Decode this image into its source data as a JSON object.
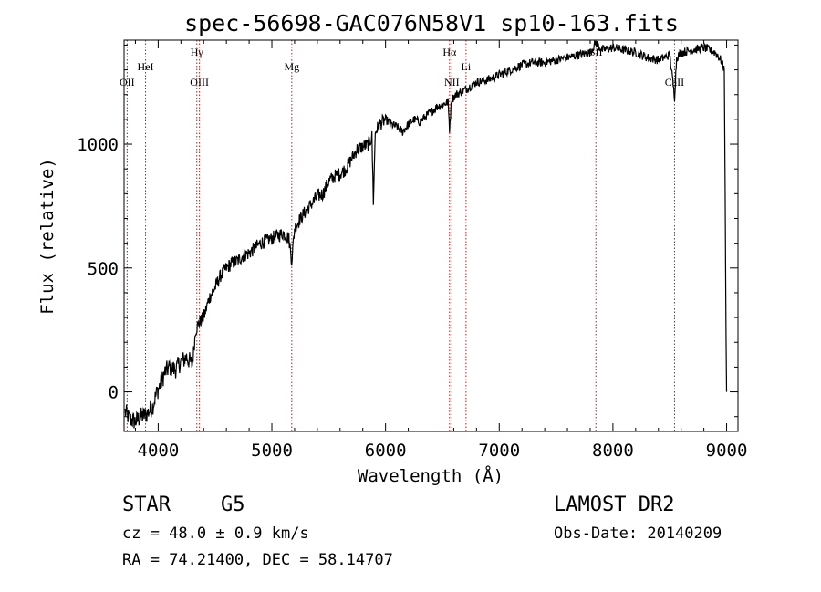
{
  "chart_data": {
    "type": "line",
    "title": "spec-56698-GAC076N58V1_sp10-163.fits",
    "xlabel": "Wavelength (Å)",
    "ylabel": "Flux (relative)",
    "xlim": [
      3700,
      9100
    ],
    "ylim": [
      -160,
      1420
    ],
    "x_ticks": [
      4000,
      5000,
      6000,
      7000,
      8000,
      9000
    ],
    "x_tick_labels": [
      "4000",
      "5000",
      "6000",
      "7000",
      "8000",
      "9000"
    ],
    "y_ticks": [
      0,
      500,
      1000
    ],
    "y_tick_labels": [
      "0",
      "500",
      "1000"
    ],
    "grid": false,
    "series": [
      {
        "name": "flux",
        "x": [
          3710,
          3750,
          3800,
          3850,
          3900,
          3950,
          3990,
          4020,
          4060,
          4100,
          4150,
          4200,
          4250,
          4300,
          4330,
          4360,
          4400,
          4450,
          4500,
          4550,
          4600,
          4650,
          4700,
          4750,
          4800,
          4850,
          4900,
          4950,
          5000,
          5050,
          5100,
          5150,
          5175,
          5200,
          5250,
          5300,
          5350,
          5400,
          5450,
          5500,
          5550,
          5600,
          5650,
          5700,
          5750,
          5800,
          5850,
          5880,
          5893,
          5910,
          5950,
          6000,
          6050,
          6100,
          6150,
          6200,
          6250,
          6300,
          6350,
          6400,
          6450,
          6500,
          6550,
          6563,
          6580,
          6620,
          6700,
          6800,
          6900,
          7000,
          7100,
          7200,
          7300,
          7400,
          7500,
          7600,
          7700,
          7800,
          7850,
          7900,
          8000,
          8100,
          8200,
          8300,
          8400,
          8500,
          8542,
          8560,
          8600,
          8700,
          8800,
          8850,
          8900,
          8950,
          8980,
          8995,
          9000
        ],
        "y": [
          -80,
          -110,
          -120,
          -100,
          -90,
          -60,
          0,
          30,
          80,
          100,
          90,
          120,
          140,
          110,
          250,
          280,
          300,
          380,
          420,
          470,
          500,
          520,
          530,
          550,
          560,
          580,
          600,
          610,
          620,
          630,
          640,
          620,
          530,
          660,
          700,
          730,
          760,
          790,
          800,
          850,
          870,
          880,
          900,
          940,
          980,
          990,
          1000,
          1030,
          770,
          1050,
          1080,
          1100,
          1080,
          1070,
          1050,
          1080,
          1100,
          1090,
          1110,
          1130,
          1150,
          1160,
          1170,
          1060,
          1180,
          1200,
          1220,
          1250,
          1260,
          1280,
          1300,
          1320,
          1330,
          1330,
          1340,
          1350,
          1360,
          1370,
          1410,
          1380,
          1390,
          1380,
          1370,
          1350,
          1340,
          1360,
          1190,
          1350,
          1370,
          1380,
          1390,
          1380,
          1370,
          1340,
          1300,
          250,
          0
        ]
      }
    ],
    "line_markers": [
      {
        "label": "OII",
        "x": 3727,
        "row": "low"
      },
      {
        "label": "HeI",
        "x": 3889,
        "row": "mid"
      },
      {
        "label": "Hγ",
        "x": 4340,
        "row": "high"
      },
      {
        "label": "OIII",
        "x": 4363,
        "row": "low"
      },
      {
        "label": "Mg",
        "x": 5175,
        "row": "mid"
      },
      {
        "label": "Hα",
        "x": 6563,
        "row": "high"
      },
      {
        "label": "NII",
        "x": 6583,
        "row": "low"
      },
      {
        "label": "Li",
        "x": 6708,
        "row": "mid"
      },
      {
        "label": "SII",
        "x": 7850,
        "row": "high"
      },
      {
        "label": "CaII",
        "x": 8542,
        "row": "low"
      }
    ]
  },
  "info": {
    "object_class": "STAR",
    "subclass": "G5",
    "survey": "LAMOST DR2",
    "redshift": "cz = 48.0 ± 0.9 km/s",
    "obs_date": "Obs-Date: 20140209",
    "coords": "RA =  74.21400, DEC =  58.14707"
  }
}
